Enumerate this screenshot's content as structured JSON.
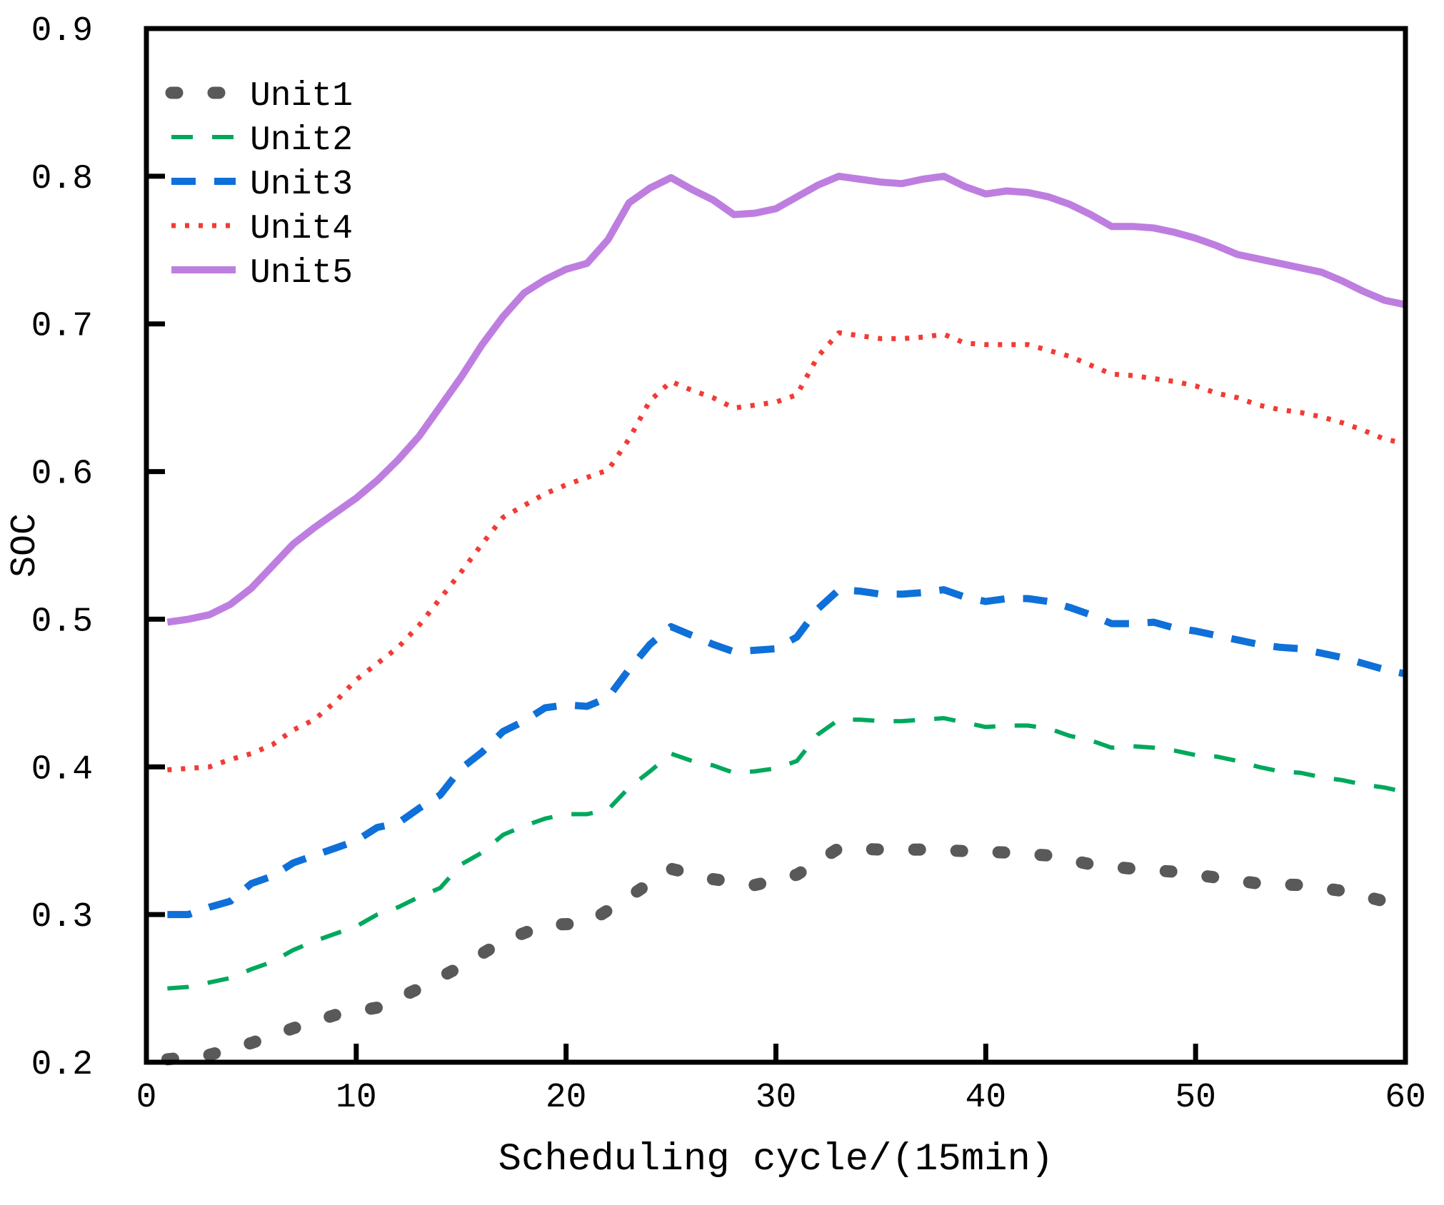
{
  "chart_data": {
    "type": "line",
    "title": "",
    "xlabel": "Scheduling cycle/(15min)",
    "ylabel": "SOC",
    "xlim": [
      0,
      60
    ],
    "ylim": [
      0.2,
      0.9
    ],
    "x_ticks": [
      0,
      10,
      20,
      30,
      40,
      50,
      60
    ],
    "y_ticks": [
      0.2,
      0.3,
      0.4,
      0.5,
      0.6,
      0.7,
      0.8,
      0.9
    ],
    "grid": false,
    "legend_position": "top-left-inside",
    "axis_color": "#000000",
    "series": [
      {
        "name": "Unit1",
        "color": "#595959",
        "line_style": "bold-round-dot",
        "stroke_width": 17,
        "dash": "8 51",
        "linecap": "round",
        "x": [
          1,
          3,
          5,
          7,
          9,
          11,
          13,
          15,
          17,
          19,
          21,
          23,
          25,
          27,
          29,
          31,
          33,
          35,
          37,
          39,
          41,
          43,
          45,
          47,
          49,
          51,
          53,
          55,
          57,
          59
        ],
        "values": [
          0.202,
          0.205,
          0.213,
          0.223,
          0.232,
          0.237,
          0.25,
          0.265,
          0.282,
          0.293,
          0.294,
          0.312,
          0.331,
          0.324,
          0.32,
          0.327,
          0.345,
          0.344,
          0.344,
          0.343,
          0.342,
          0.34,
          0.334,
          0.331,
          0.329,
          0.325,
          0.321,
          0.32,
          0.316,
          0.309
        ]
      },
      {
        "name": "Unit2",
        "color": "#00A85D",
        "line_style": "thin-dash",
        "stroke_width": 6,
        "dash": "30 27",
        "linecap": "butt",
        "x": [
          1,
          2,
          3,
          4,
          5,
          6,
          7,
          8,
          9,
          10,
          11,
          12,
          13,
          14,
          15,
          16,
          17,
          18,
          19,
          20,
          21,
          22,
          23,
          24,
          25,
          26,
          27,
          28,
          29,
          30,
          31,
          32,
          33,
          34,
          35,
          36,
          37,
          38,
          39,
          40,
          41,
          42,
          43,
          44,
          45,
          46,
          47,
          48,
          49,
          50,
          51,
          52,
          53,
          54,
          55,
          56,
          57,
          58,
          59,
          60
        ],
        "values": [
          0.25,
          0.251,
          0.254,
          0.257,
          0.263,
          0.268,
          0.276,
          0.282,
          0.287,
          0.292,
          0.3,
          0.305,
          0.312,
          0.318,
          0.334,
          0.342,
          0.354,
          0.36,
          0.365,
          0.368,
          0.368,
          0.371,
          0.386,
          0.397,
          0.409,
          0.404,
          0.401,
          0.396,
          0.397,
          0.399,
          0.404,
          0.422,
          0.432,
          0.432,
          0.431,
          0.431,
          0.432,
          0.433,
          0.43,
          0.427,
          0.428,
          0.428,
          0.426,
          0.421,
          0.418,
          0.413,
          0.414,
          0.413,
          0.411,
          0.408,
          0.407,
          0.404,
          0.4,
          0.397,
          0.396,
          0.393,
          0.391,
          0.388,
          0.386,
          0.383
        ]
      },
      {
        "name": "Unit3",
        "color": "#0E70D8",
        "line_style": "bold-dash",
        "stroke_width": 10,
        "dash": "34 26",
        "linecap": "butt",
        "x": [
          1,
          2,
          3,
          4,
          5,
          6,
          7,
          8,
          9,
          10,
          11,
          12,
          13,
          14,
          15,
          16,
          17,
          18,
          19,
          20,
          21,
          22,
          23,
          24,
          25,
          26,
          27,
          28,
          29,
          30,
          31,
          32,
          33,
          34,
          35,
          36,
          37,
          38,
          39,
          40,
          41,
          42,
          43,
          44,
          45,
          46,
          47,
          48,
          49,
          50,
          51,
          52,
          53,
          54,
          55,
          56,
          57,
          58,
          59,
          60
        ],
        "values": [
          0.3,
          0.3,
          0.305,
          0.309,
          0.321,
          0.326,
          0.335,
          0.34,
          0.345,
          0.35,
          0.359,
          0.362,
          0.372,
          0.381,
          0.399,
          0.41,
          0.424,
          0.431,
          0.44,
          0.442,
          0.441,
          0.447,
          0.466,
          0.483,
          0.495,
          0.489,
          0.483,
          0.478,
          0.479,
          0.48,
          0.488,
          0.507,
          0.52,
          0.519,
          0.517,
          0.517,
          0.518,
          0.52,
          0.515,
          0.512,
          0.514,
          0.514,
          0.512,
          0.508,
          0.503,
          0.497,
          0.497,
          0.498,
          0.494,
          0.492,
          0.489,
          0.486,
          0.483,
          0.481,
          0.48,
          0.477,
          0.474,
          0.47,
          0.466,
          0.463
        ]
      },
      {
        "name": "Unit4",
        "color": "#F23B35",
        "line_style": "dotted",
        "stroke_width": 7,
        "dash": "6 13",
        "linecap": "butt",
        "x": [
          1,
          2,
          3,
          4,
          5,
          6,
          7,
          8,
          9,
          10,
          11,
          12,
          13,
          14,
          15,
          16,
          17,
          18,
          19,
          20,
          21,
          22,
          23,
          24,
          25,
          26,
          27,
          28,
          29,
          30,
          31,
          32,
          33,
          34,
          35,
          36,
          37,
          38,
          39,
          40,
          41,
          42,
          43,
          44,
          45,
          46,
          47,
          48,
          49,
          50,
          51,
          52,
          53,
          54,
          55,
          56,
          57,
          58,
          59,
          60
        ],
        "values": [
          0.398,
          0.399,
          0.4,
          0.405,
          0.409,
          0.415,
          0.425,
          0.432,
          0.444,
          0.459,
          0.47,
          0.481,
          0.496,
          0.514,
          0.532,
          0.551,
          0.569,
          0.577,
          0.585,
          0.591,
          0.596,
          0.601,
          0.622,
          0.648,
          0.661,
          0.655,
          0.65,
          0.643,
          0.645,
          0.647,
          0.652,
          0.678,
          0.694,
          0.692,
          0.69,
          0.69,
          0.691,
          0.693,
          0.687,
          0.686,
          0.686,
          0.686,
          0.682,
          0.678,
          0.672,
          0.666,
          0.665,
          0.663,
          0.661,
          0.658,
          0.653,
          0.65,
          0.645,
          0.642,
          0.64,
          0.637,
          0.633,
          0.628,
          0.622,
          0.619
        ]
      },
      {
        "name": "Unit5",
        "color": "#BE7EE0",
        "line_style": "solid",
        "stroke_width": 10,
        "dash": "",
        "linecap": "butt",
        "x": [
          1,
          2,
          3,
          4,
          5,
          6,
          7,
          8,
          9,
          10,
          11,
          12,
          13,
          14,
          15,
          16,
          17,
          18,
          19,
          20,
          21,
          22,
          23,
          24,
          25,
          26,
          27,
          28,
          29,
          30,
          31,
          32,
          33,
          34,
          35,
          36,
          37,
          38,
          39,
          40,
          41,
          42,
          43,
          44,
          45,
          46,
          47,
          48,
          49,
          50,
          51,
          52,
          53,
          54,
          55,
          56,
          57,
          58,
          59,
          60
        ],
        "values": [
          0.498,
          0.5,
          0.503,
          0.51,
          0.521,
          0.536,
          0.551,
          0.562,
          0.572,
          0.582,
          0.594,
          0.608,
          0.624,
          0.644,
          0.664,
          0.686,
          0.705,
          0.721,
          0.73,
          0.737,
          0.741,
          0.757,
          0.782,
          0.792,
          0.799,
          0.791,
          0.784,
          0.774,
          0.775,
          0.778,
          0.786,
          0.794,
          0.8,
          0.798,
          0.796,
          0.795,
          0.798,
          0.8,
          0.793,
          0.788,
          0.79,
          0.789,
          0.786,
          0.781,
          0.774,
          0.766,
          0.766,
          0.765,
          0.762,
          0.758,
          0.753,
          0.747,
          0.744,
          0.741,
          0.738,
          0.735,
          0.729,
          0.722,
          0.716,
          0.713
        ]
      }
    ]
  }
}
